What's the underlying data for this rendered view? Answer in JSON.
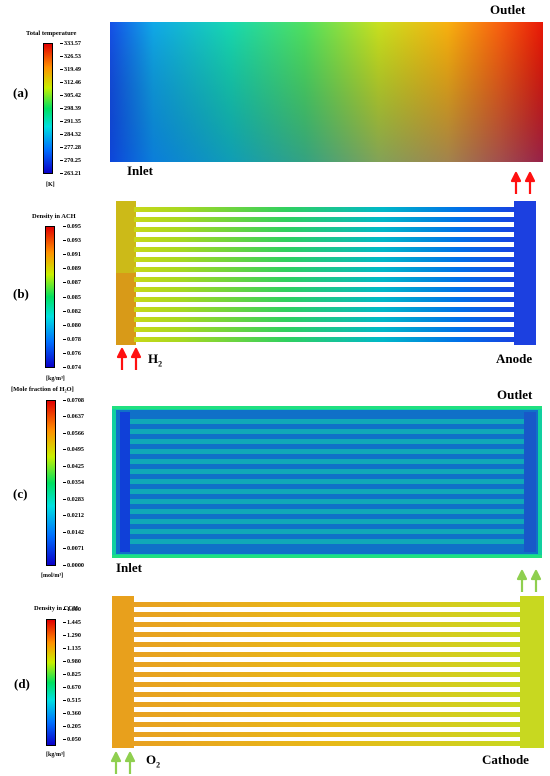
{
  "panels": {
    "a": {
      "letter": "(a)",
      "colorbar_title": "Total temperature",
      "unit": "[K]",
      "ticks": [
        "333.57",
        "326.53",
        "319.49",
        "312.46",
        "305.42",
        "298.39",
        "291.35",
        "284.32",
        "277.28",
        "270.25",
        "263.21"
      ],
      "label_top": "Outlet",
      "label_bottom": "Inlet"
    },
    "b": {
      "letter": "(b)",
      "colorbar_title": "Density in ACH",
      "unit": "[kg/m³]",
      "ticks": [
        "0.095",
        "0.093",
        "0.091",
        "0.089",
        "0.087",
        "0.085",
        "0.082",
        "0.080",
        "0.078",
        "0.076",
        "0.074"
      ],
      "label_gas": "H",
      "label_gas_sub": "2",
      "label_side": "Anode"
    },
    "c": {
      "letter": "(c)",
      "colorbar_title": "[Mole fraction of H₂O]",
      "unit": "[mol/m³]",
      "ticks": [
        "0.0708",
        "0.0637",
        "0.0566",
        "0.0495",
        "0.0425",
        "0.0354",
        "0.0283",
        "0.0212",
        "0.0142",
        "0.0071",
        "0.0000"
      ],
      "label_top": "Outlet",
      "label_bottom": "Inlet"
    },
    "d": {
      "letter": "(d)",
      "colorbar_title": "Density in CCH",
      "unit": "[kg/m³]",
      "ticks": [
        "1.600",
        "1.445",
        "1.290",
        "1.135",
        "0.980",
        "0.825",
        "0.670",
        "0.515",
        "0.360",
        "0.205",
        "0.050"
      ],
      "label_gas": "O",
      "label_gas_sub": "2",
      "label_side": "Cathode"
    }
  },
  "colors": {
    "arrow_red": "#ff1010",
    "arrow_green": "#8fcf4f"
  }
}
